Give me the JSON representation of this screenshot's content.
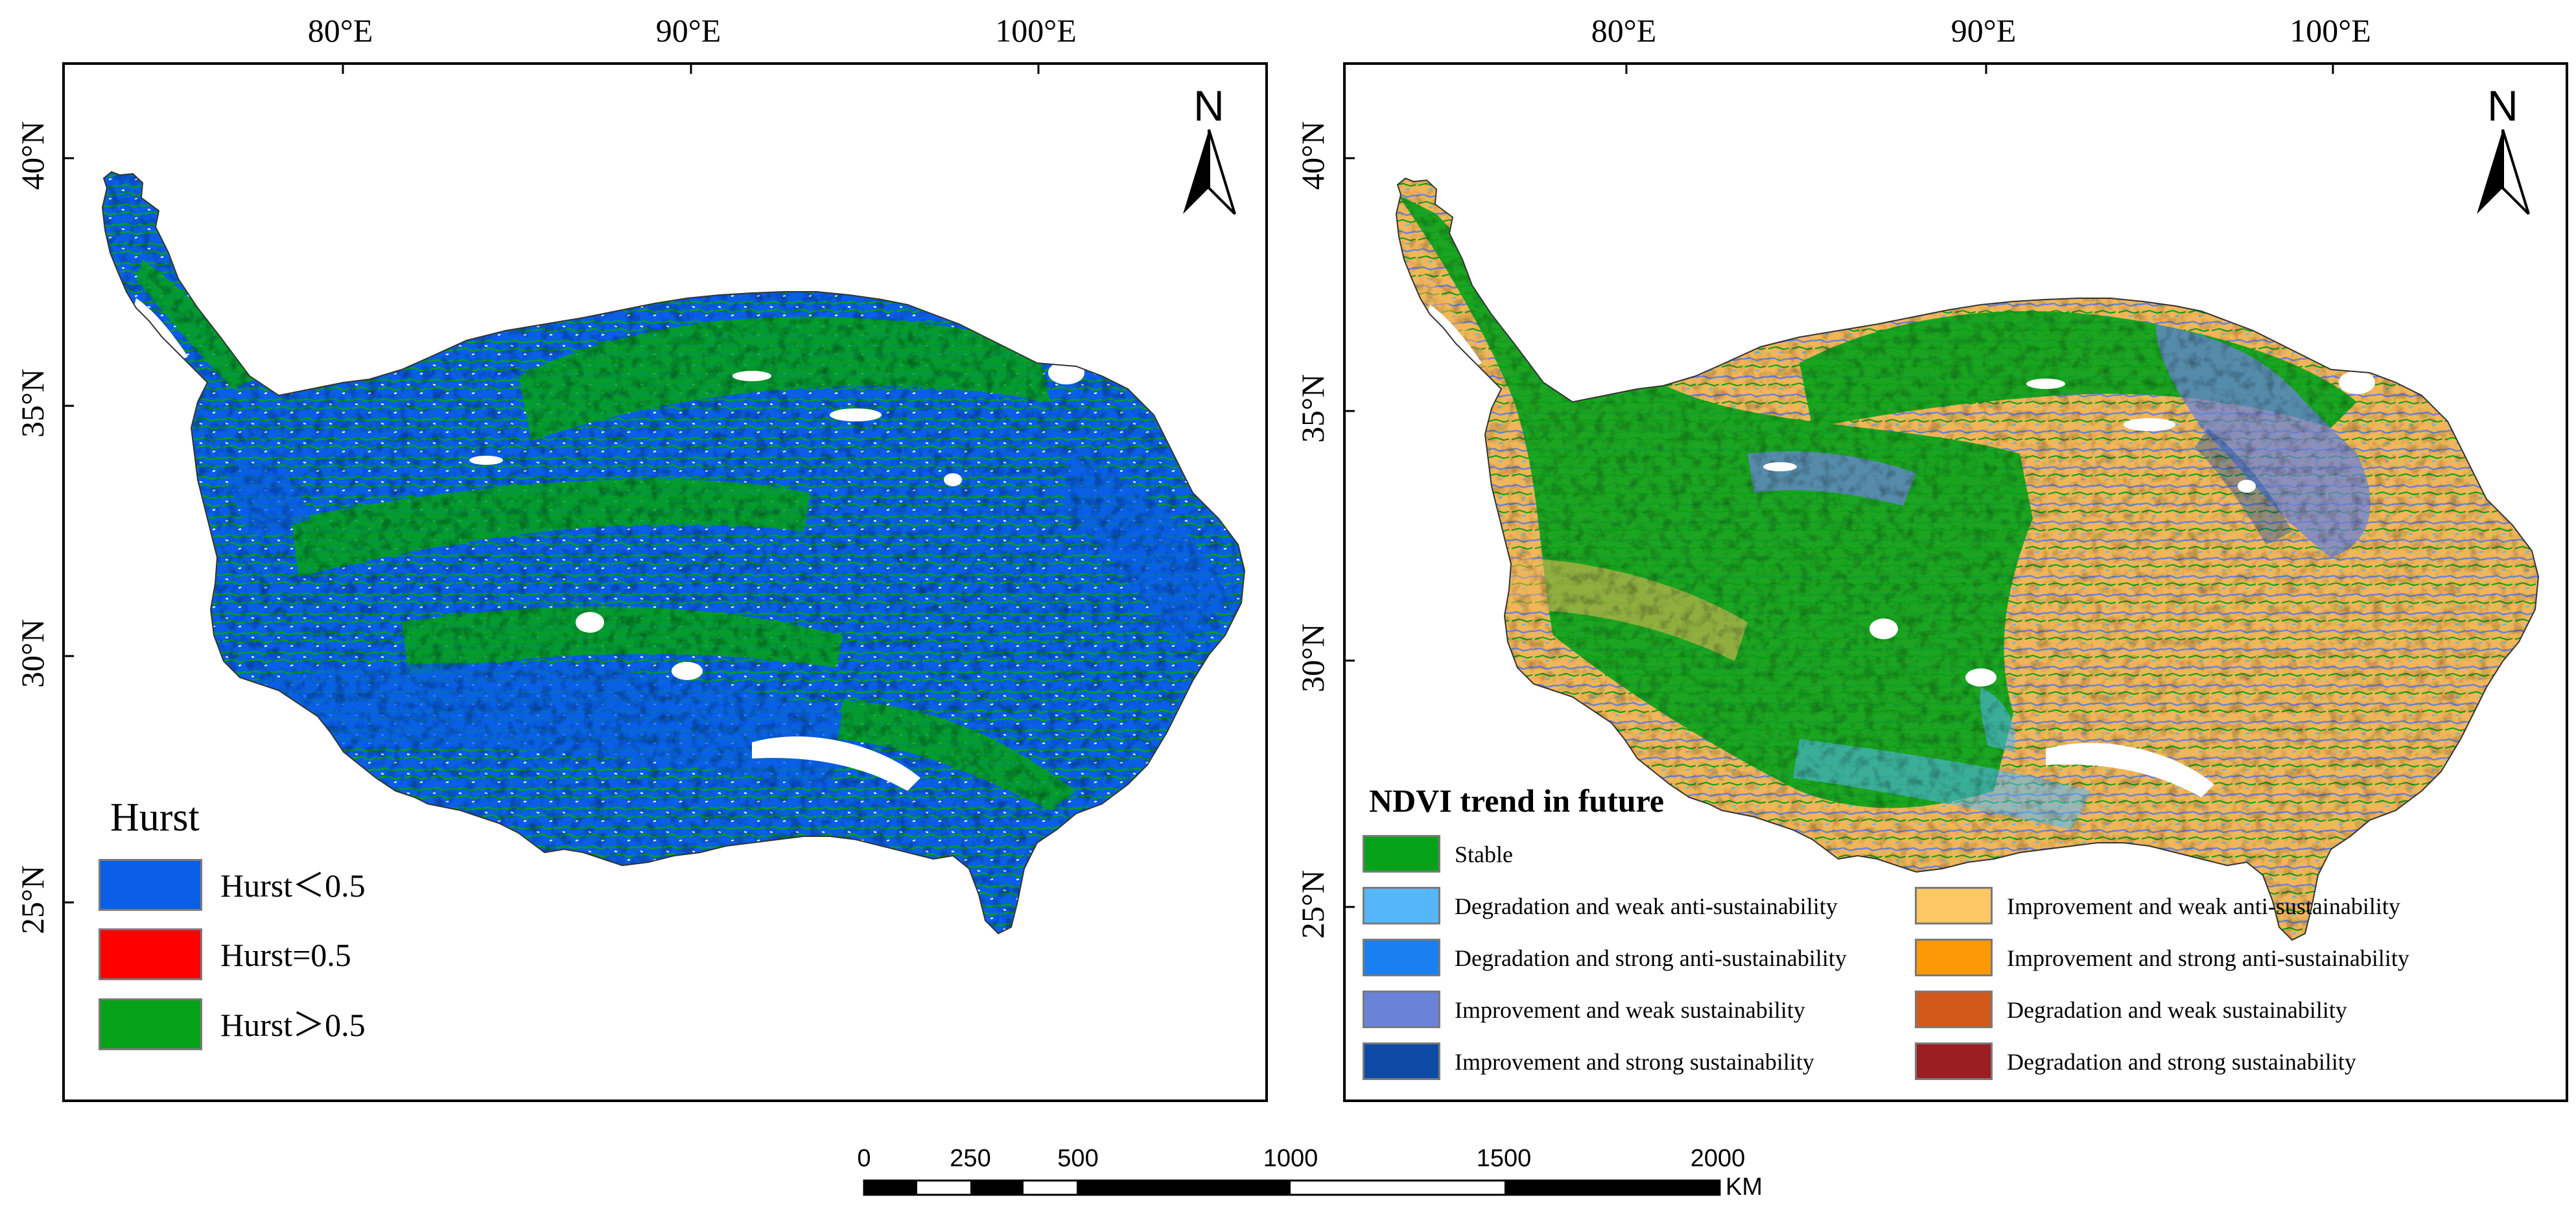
{
  "graticule": {
    "lon_labels": [
      "80°E",
      "90°E",
      "100°E"
    ],
    "lat_labels": [
      "40°N",
      "35°N",
      "30°N",
      "25°N"
    ]
  },
  "north_arrow": {
    "letter": "N"
  },
  "left_map": {
    "legend_title": "Hurst",
    "legend": [
      {
        "label": "Hurst＜0.5",
        "color": "#0a5fe6"
      },
      {
        "label": "Hurst=0.5",
        "color": "#ff0000"
      },
      {
        "label": "Hurst＞0.5",
        "color": "#05a219"
      }
    ]
  },
  "right_map": {
    "legend_title": "NDVI trend in future",
    "legend_stable": {
      "label": "Stable",
      "color": "#05a219"
    },
    "legend_left": [
      {
        "label": "Degradation and weak anti-sustainability",
        "color": "#55b6fa"
      },
      {
        "label": "Degradation and strong anti-sustainability",
        "color": "#1a7ff0"
      },
      {
        "label": "Improvement and weak sustainability",
        "color": "#6a83d8"
      },
      {
        "label": "Improvement and strong sustainability",
        "color": "#0d4aa6"
      }
    ],
    "legend_right": [
      {
        "label": "Improvement and weak anti-sustainability",
        "color": "#fcc764"
      },
      {
        "label": "Improvement and strong anti-sustainability",
        "color": "#fb9a06"
      },
      {
        "label": "Degradation and weak sustainability",
        "color": "#d2591a"
      },
      {
        "label": "Degradation and strong sustainability",
        "color": "#9b1e22"
      }
    ]
  },
  "scale_bar": {
    "labels": [
      "0",
      "250",
      "500",
      "1000",
      "1500",
      "2000"
    ],
    "unit": "KM"
  }
}
